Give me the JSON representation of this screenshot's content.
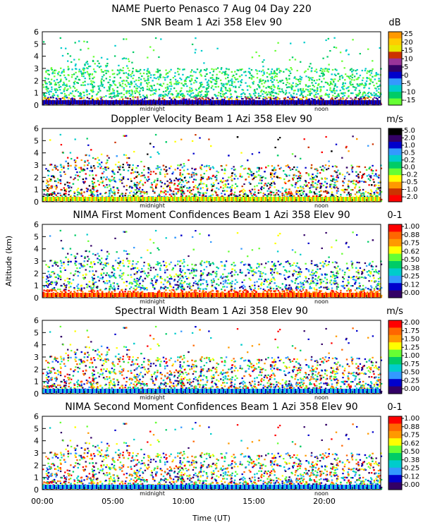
{
  "header": {
    "line1": "NAME Puerto Penasco    7 Aug 04 Day 220"
  },
  "chart_data": [
    {
      "type": "heatmap",
      "title": "SNR Beam 1 Azi 358 Elev 90",
      "unit": "dB",
      "colorbar_ticks": [
        "25",
        "20",
        "15",
        "10",
        "5",
        "0",
        "-5",
        "-10",
        "-15"
      ],
      "colors": [
        "#ff9900",
        "#ffcc00",
        "#e8e800",
        "#cc3300",
        "#993399",
        "#330066",
        "#0000cc",
        "#3399ff",
        "#00cccc",
        "#00cc66",
        "#66ff33"
      ],
      "ylim": [
        0,
        6
      ],
      "y_ticks": [
        "0",
        "1",
        "2",
        "3",
        "4",
        "5",
        "6"
      ]
    },
    {
      "type": "heatmap",
      "title": "Doppler Velocity Beam 1 Azi 358 Elev 90",
      "unit": "m/s",
      "colorbar_ticks": [
        "5.0",
        "2.0",
        "1.0",
        "0.5",
        "0.2",
        "0.0",
        "-0.2",
        "-0.5",
        "-1.0",
        "-2.0"
      ],
      "colors": [
        "#000000",
        "#330066",
        "#0000cc",
        "#3399ff",
        "#00cccc",
        "#00cc66",
        "#66ff33",
        "#ffff00",
        "#ff9900",
        "#cc3300",
        "#ff0000"
      ],
      "ylim": [
        0,
        6
      ],
      "y_ticks": [
        "0",
        "1",
        "2",
        "3",
        "4",
        "5",
        "6"
      ]
    },
    {
      "type": "heatmap",
      "title": "NIMA First Moment Confidences Beam 1 Azi 358 Elev 90",
      "unit": "0-1",
      "colorbar_ticks": [
        "1.00",
        "0.88",
        "0.75",
        "0.62",
        "0.50",
        "0.38",
        "0.25",
        "0.12",
        "0.00"
      ],
      "colors": [
        "#ff0000",
        "#ff6600",
        "#ff9900",
        "#ffff00",
        "#66ff33",
        "#00cc66",
        "#00cccc",
        "#3399ff",
        "#0000cc",
        "#330066"
      ],
      "ylim": [
        0,
        6
      ],
      "y_ticks": [
        "0",
        "1",
        "2",
        "3",
        "4",
        "5",
        "6"
      ]
    },
    {
      "type": "heatmap",
      "title": "Spectral Width Beam 1 Azi 358 Elev 90",
      "unit": "m/s",
      "colorbar_ticks": [
        "2.00",
        "1.75",
        "1.50",
        "1.25",
        "1.00",
        "0.75",
        "0.50",
        "0.25",
        "0.00"
      ],
      "colors": [
        "#ff0000",
        "#ff6600",
        "#ff9900",
        "#ffff00",
        "#66ff33",
        "#00cc66",
        "#00cccc",
        "#3399ff",
        "#0000cc",
        "#330066"
      ],
      "ylim": [
        0,
        6
      ],
      "y_ticks": [
        "0",
        "1",
        "2",
        "3",
        "4",
        "5",
        "6"
      ]
    },
    {
      "type": "heatmap",
      "title": "NIMA Second Moment Confidences Beam 1 Azi 358 Elev 90",
      "unit": "0-1",
      "colorbar_ticks": [
        "1.00",
        "0.88",
        "0.75",
        "0.62",
        "0.50",
        "0.38",
        "0.25",
        "0.12",
        "0.00"
      ],
      "colors": [
        "#ff0000",
        "#ff6600",
        "#ff9900",
        "#ffff00",
        "#66ff33",
        "#00cc66",
        "#00cccc",
        "#3399ff",
        "#0000cc",
        "#330066"
      ],
      "ylim": [
        0,
        6
      ],
      "y_ticks": [
        "0",
        "1",
        "2",
        "3",
        "4",
        "5",
        "6"
      ]
    }
  ],
  "axes": {
    "ylabel": "Altitude (km)",
    "xlabel": "Time (UT)",
    "x_ticks": [
      "00:00",
      "05:00",
      "10:00",
      "15:00",
      "20:00"
    ],
    "x_tick_values": [
      0,
      5,
      10,
      15,
      20
    ],
    "xlim": [
      0,
      24
    ],
    "markers": [
      {
        "label": "midnight",
        "hour": 7.8
      },
      {
        "label": "noon",
        "hour": 19.8
      }
    ]
  }
}
